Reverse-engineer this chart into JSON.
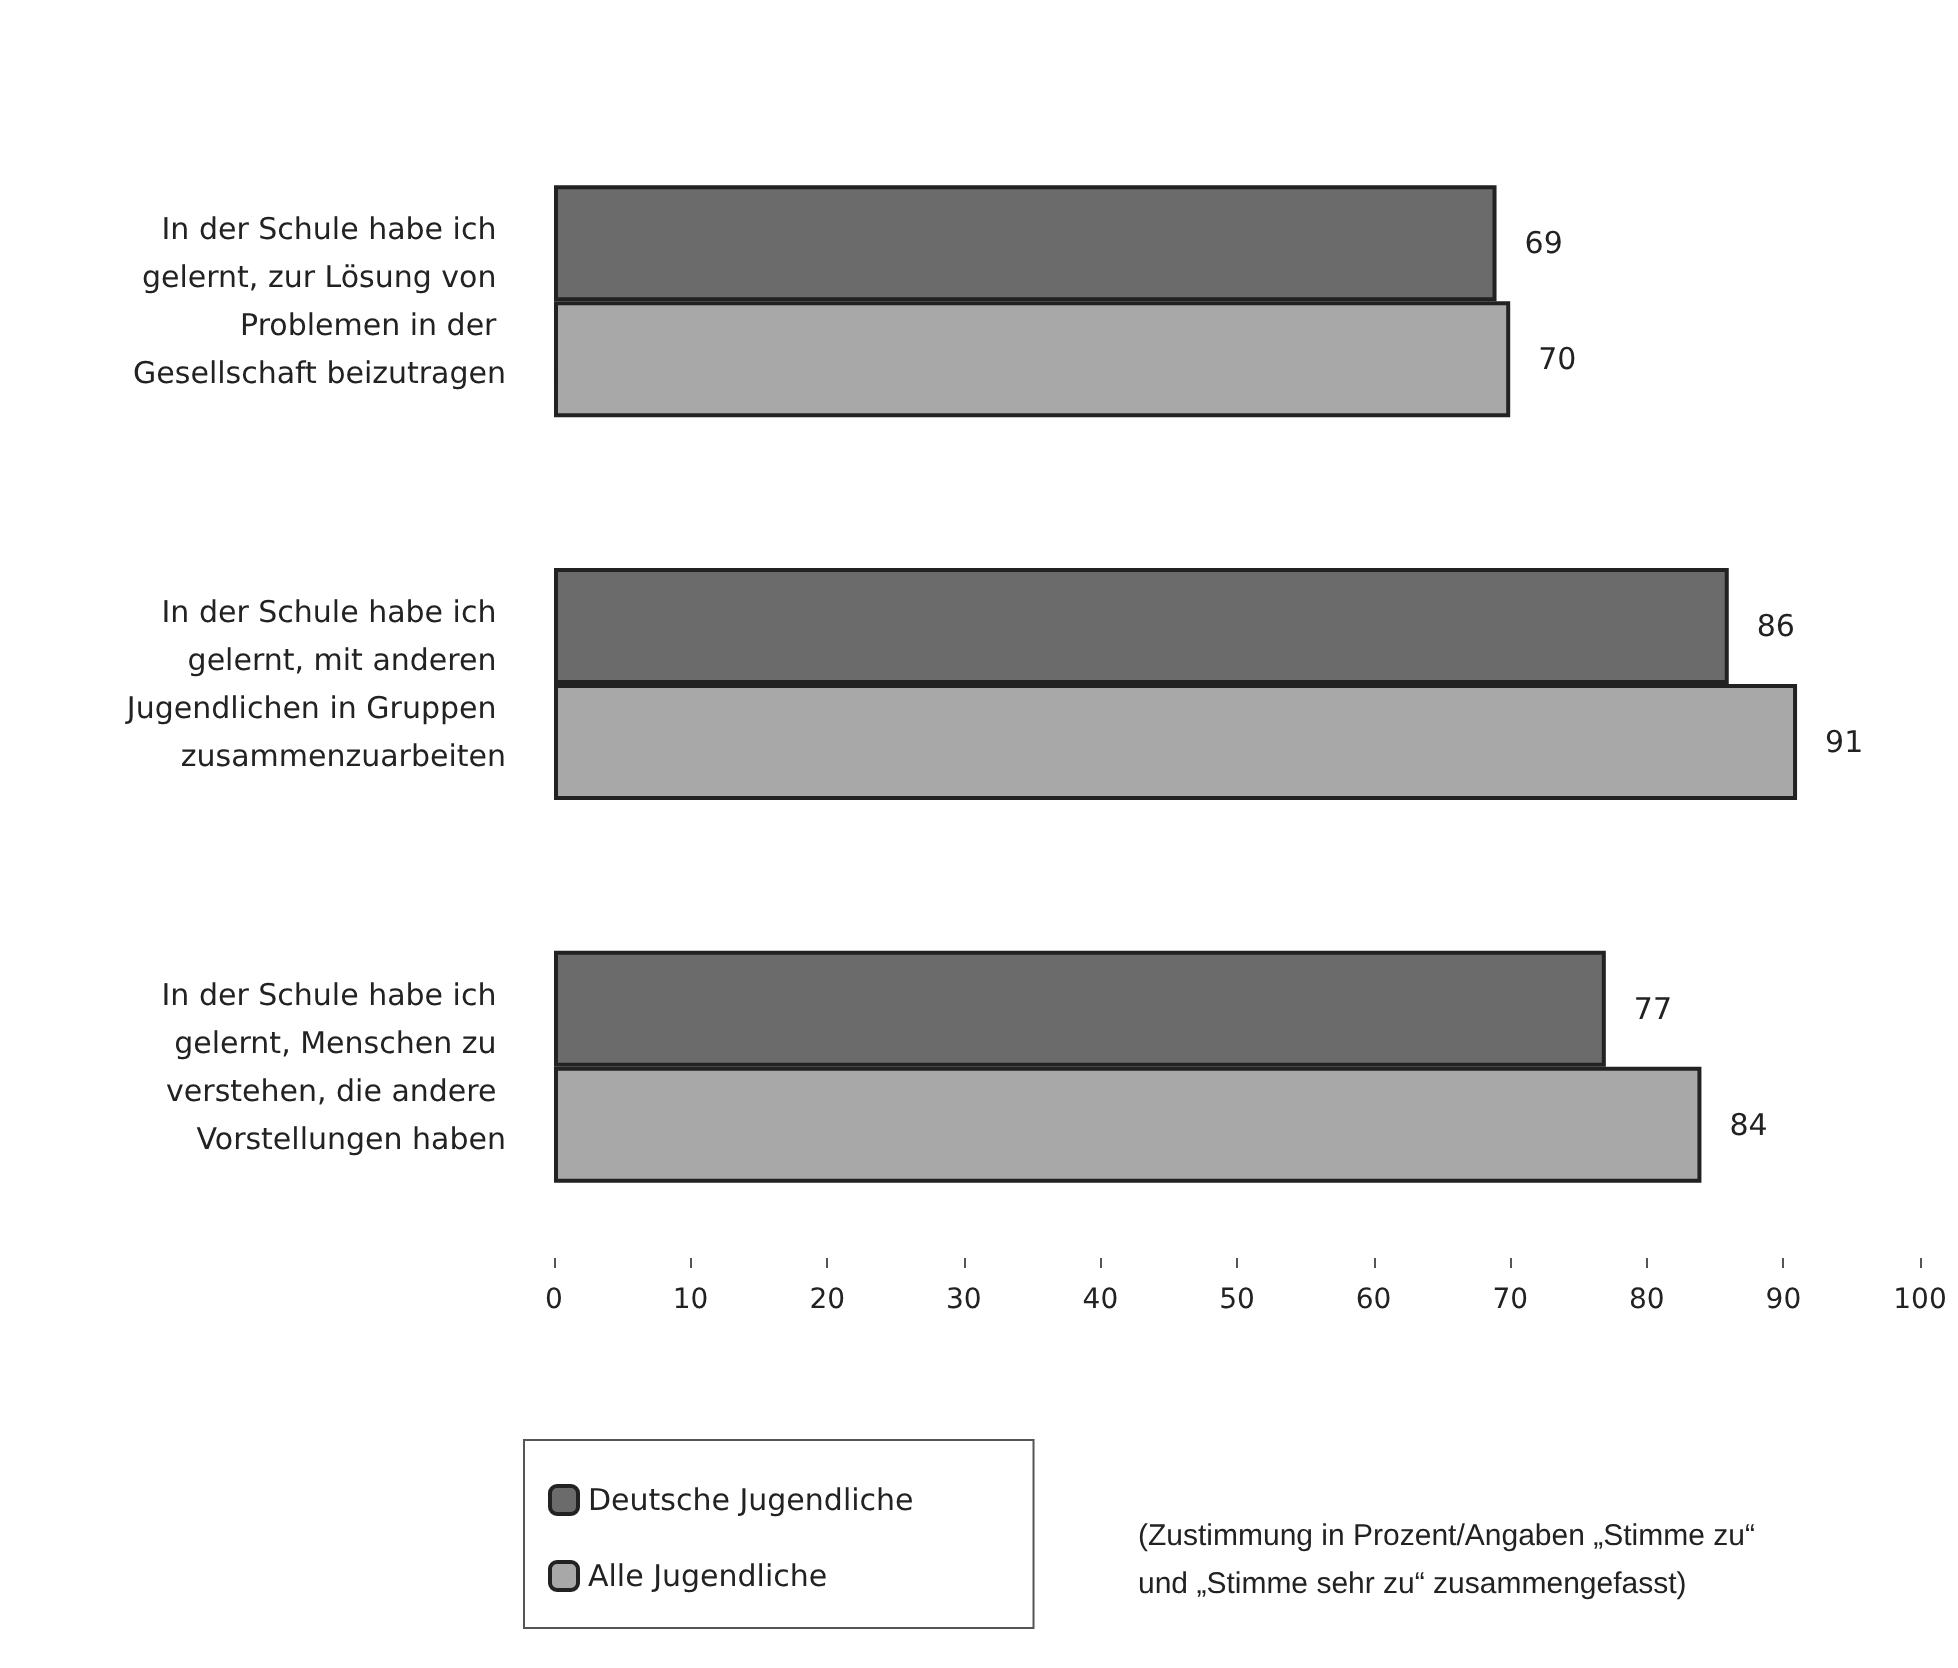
{
  "chart_data": {
    "type": "bar",
    "orientation": "horizontal",
    "categories": [
      "In der Schule habe ich gelernt, zur Lösung von Problemen in der Gesellschaft beizutragen",
      "In der Schule habe ich gelernt, mit anderen Jugendlichen in Gruppen zusammenzuarbeiten",
      "In der Schule habe ich gelernt, Menschen zu verstehen, die andere Vorstellungen haben"
    ],
    "series": [
      {
        "name": "Deutsche Jugendliche",
        "color": "#6b6b6b",
        "values": [
          69,
          86,
          77
        ]
      },
      {
        "name": "Alle Jugendliche",
        "color": "#a8a8a8",
        "values": [
          70,
          91,
          84
        ]
      }
    ],
    "xlim": [
      0,
      100
    ],
    "xticks": [
      0,
      10,
      20,
      30,
      40,
      50,
      60,
      70,
      80,
      90,
      100
    ],
    "data_labels": true,
    "grid": false,
    "legend": "bottom left",
    "annotations": [
      "(Zustimmung in Prozent/Angaben „Stimme zu“ und „Stimme sehr zu“ zusammengefasst)"
    ]
  }
}
